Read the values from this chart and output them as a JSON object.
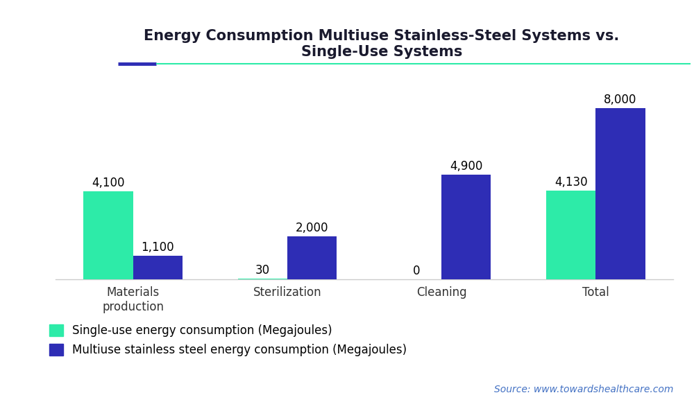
{
  "title_line1": "Energy Consumption Multiuse Stainless-Steel Systems vs.",
  "title_line2": "Single-Use Systems",
  "categories": [
    "Materials\nproduction",
    "Sterilization",
    "Cleaning",
    "Total"
  ],
  "single_use": [
    4100,
    30,
    0,
    4130
  ],
  "multiuse": [
    1100,
    2000,
    4900,
    8000
  ],
  "single_use_color": "#2DEBA8",
  "multiuse_color": "#2E2DB5",
  "bar_width": 0.32,
  "ylim": [
    0,
    9200
  ],
  "legend_single": "Single-use energy consumption (Megajoules)",
  "legend_multi": "Multiuse stainless steel energy consumption (Megajoules)",
  "source_text": "Source: www.towardshealthcare.com",
  "bg_color": "#FFFFFF",
  "label_fontsize": 12,
  "title_fontsize": 15,
  "tick_fontsize": 12,
  "source_fontsize": 10,
  "legend_fontsize": 12,
  "accent_line_color_dark": "#2E2DB5",
  "accent_line_color_teal": "#2DEBA8"
}
